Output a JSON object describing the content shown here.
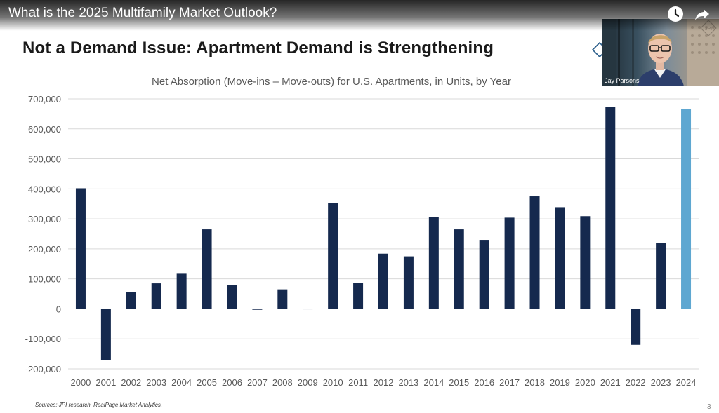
{
  "video": {
    "title": "What is the 2025 Multifamily Market Outlook?",
    "icons": [
      "watch-later-icon",
      "share-icon"
    ]
  },
  "slide": {
    "title": "Not a Demand Issue: Apartment Demand is Strengthening",
    "sources": "Sources: JPI research, RealPage Market Analytics.",
    "page_number": "3",
    "presenter_name": "Jay Parsons",
    "colors": {
      "bar": "#15294e",
      "highlight_bar": "#5ea7d1",
      "grid": "#d9d9d9",
      "text": "#595959"
    }
  },
  "chart_data": {
    "type": "bar",
    "title": "Net Absorption (Move-ins – Move-outs) for U.S. Apartments, in Units, by Year",
    "xlabel": "",
    "ylabel": "",
    "categories": [
      "2000",
      "2001",
      "2002",
      "2003",
      "2004",
      "2005",
      "2006",
      "2007",
      "2008",
      "2009",
      "2010",
      "2011",
      "2012",
      "2013",
      "2014",
      "2015",
      "2016",
      "2017",
      "2018",
      "2019",
      "2020",
      "2021",
      "2022",
      "2023",
      "2024"
    ],
    "values": [
      402000,
      -170000,
      56000,
      85000,
      117000,
      265000,
      80000,
      -3000,
      65000,
      -1000,
      354000,
      87000,
      184000,
      175000,
      305000,
      265000,
      230000,
      304000,
      375000,
      339000,
      309000,
      673000,
      -120000,
      219000,
      667000
    ],
    "highlight_index": 24,
    "ylim": [
      -200000,
      700000
    ],
    "y_ticks": [
      700000,
      600000,
      500000,
      400000,
      300000,
      200000,
      100000,
      0,
      -100000,
      -200000
    ],
    "y_tick_labels": [
      "700,000",
      "600,000",
      "500,000",
      "400,000",
      "300,000",
      "200,000",
      "100,000",
      "0",
      "-100,000",
      "-200,000"
    ],
    "grid": true,
    "zero_line": "dashed",
    "legend": "none"
  }
}
